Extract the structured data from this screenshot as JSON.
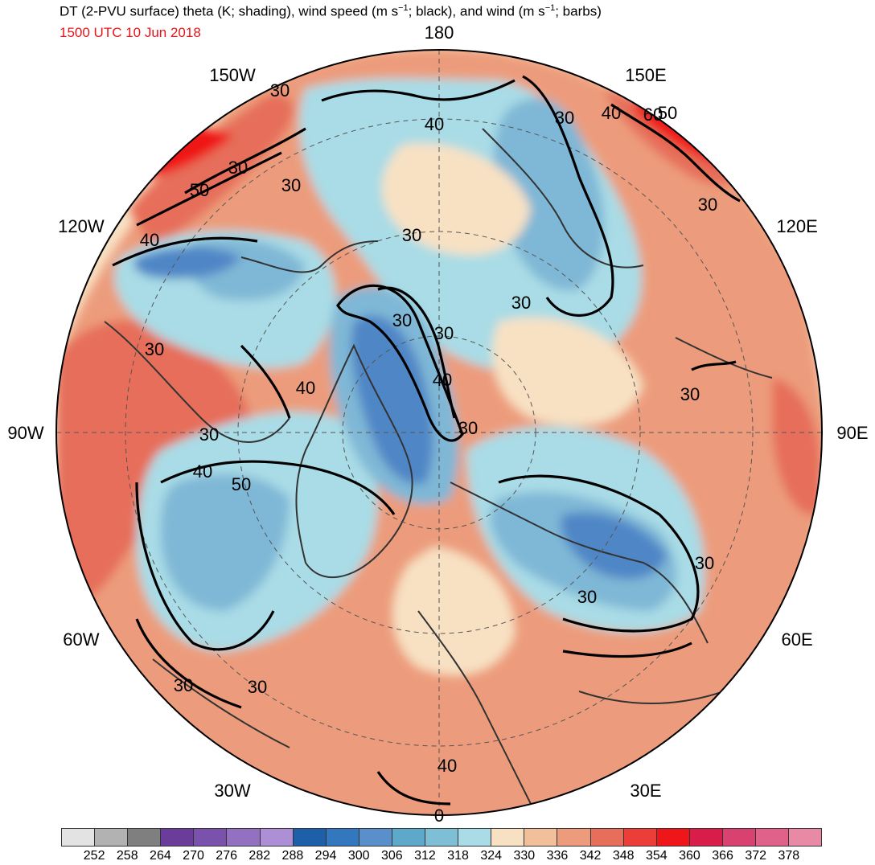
{
  "header": {
    "title_parts": [
      "DT (2-PVU surface) theta (K; shading), wind speed (m s",
      "−1",
      "; black), and wind (m s",
      "−1",
      "; barbs)"
    ],
    "subtitle": "1500 UTC 10 Jun 2018"
  },
  "longitude_labels": [
    {
      "text": "180",
      "angle": 0
    },
    {
      "text": "150E",
      "angle": 30
    },
    {
      "text": "120E",
      "angle": 60
    },
    {
      "text": "90E",
      "angle": 90
    },
    {
      "text": "60E",
      "angle": 120
    },
    {
      "text": "30E",
      "angle": 150
    },
    {
      "text": "0",
      "angle": 180
    },
    {
      "text": "30W",
      "angle": 210
    },
    {
      "text": "60W",
      "angle": 240
    },
    {
      "text": "90W",
      "angle": 270
    },
    {
      "text": "120W",
      "angle": 300
    },
    {
      "text": "150W",
      "angle": 330
    }
  ],
  "contour_labels": [
    "30",
    "40",
    "50",
    "60",
    "30",
    "40",
    "30",
    "30",
    "30",
    "40",
    "30",
    "30",
    "30",
    "40",
    "30",
    "50",
    "40",
    "30",
    "40",
    "30",
    "40",
    "50",
    "30",
    "30",
    "30",
    "30",
    "30",
    "30"
  ],
  "colorbar": {
    "colors": [
      "#e3e3e3",
      "#b2b2b2",
      "#7f7f7f",
      "#6a3d9a",
      "#7b52ab",
      "#9470c1",
      "#ad8fd6",
      "#1d5fa8",
      "#3378bf",
      "#5a8fcc",
      "#5ea8c9",
      "#7ebfd6",
      "#a9dce6",
      "#f8e1c3",
      "#f2bf9b",
      "#ec9c7c",
      "#e66e5a",
      "#ec3e38",
      "#ef1619",
      "#d91d4a",
      "#d94270",
      "#e06189",
      "#e88aa5"
    ],
    "labels": [
      "252",
      "258",
      "264",
      "270",
      "276",
      "282",
      "288",
      "294",
      "300",
      "306",
      "312",
      "318",
      "324",
      "330",
      "336",
      "342",
      "348",
      "354",
      "360",
      "366",
      "372",
      "378"
    ]
  },
  "map_colors": {
    "cold": "#4f86c6",
    "cool": "#7fb7d6",
    "pale": "#a9dce6",
    "neutral": "#f8e1c3",
    "warm": "#ec9c7c",
    "hot": "#e66e5a",
    "very_hot": "#ef1619",
    "coast": "#333333",
    "contour": "#000000"
  }
}
